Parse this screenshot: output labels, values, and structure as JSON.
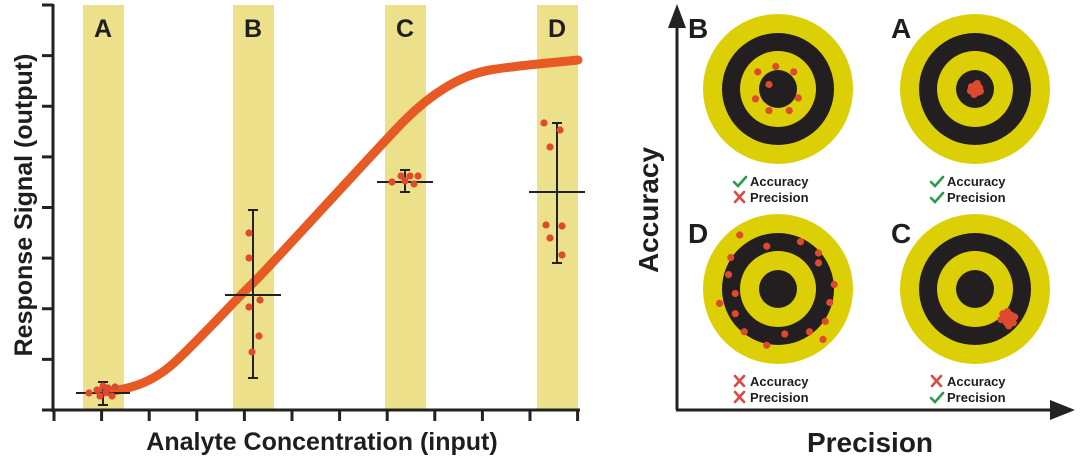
{
  "colors": {
    "band": "#ece08a",
    "curve": "#e85a24",
    "point": "#dd4a2e",
    "axis": "#222222",
    "target_yellow": "#dccf06",
    "target_black": "#231f20",
    "check": "#2e9a4e",
    "cross": "#dd4a44"
  },
  "chart_data": {
    "type": "scatter",
    "title": "",
    "xlabel": "Analyte Concentration (input)",
    "ylabel": "Response Signal (output)",
    "x_ticks": 11,
    "y_ticks": 9,
    "ylim": [
      0,
      8
    ],
    "xlim": [
      0,
      10
    ],
    "grid": false,
    "curve": {
      "name": "calibration curve",
      "x": [
        0,
        1.5,
        2.5,
        4,
        5.5,
        7,
        8.5,
        10
      ],
      "y": [
        0.2,
        0.4,
        1,
        3,
        5.2,
        6.7,
        6.85,
        6.95
      ]
    },
    "groups": [
      {
        "label": "A",
        "x": 0.45,
        "mean": 0.35,
        "err_low": 0.05,
        "err_high": 0.6,
        "points": [
          [
            0.1,
            0.35
          ],
          [
            0.35,
            0.4
          ],
          [
            0.45,
            0.5
          ],
          [
            0.55,
            0.25
          ],
          [
            0.6,
            0.45
          ],
          [
            0.75,
            0.35
          ],
          [
            0.85,
            0.4
          ],
          [
            0.5,
            0.3
          ]
        ]
      },
      {
        "label": "B",
        "x": 3.4,
        "mean": 2.3,
        "err_low": 0.6,
        "err_high": 3.95,
        "points": [
          [
            3.3,
            3.55
          ],
          [
            3.3,
            3.05
          ],
          [
            3.45,
            2.65
          ],
          [
            3.5,
            2.1
          ],
          [
            3.3,
            2.0
          ],
          [
            3.45,
            1.45
          ],
          [
            3.3,
            1.15
          ]
        ]
      },
      {
        "label": "C",
        "x": 6.5,
        "mean": 4.5,
        "err_low": 4.3,
        "err_high": 4.75,
        "points": [
          [
            6.2,
            4.55
          ],
          [
            6.4,
            4.65
          ],
          [
            6.55,
            4.65
          ],
          [
            6.7,
            4.65
          ],
          [
            6.5,
            4.5
          ],
          [
            6.65,
            4.45
          ]
        ]
      },
      {
        "label": "D",
        "x": 9.4,
        "mean": 4.3,
        "err_low": 2.95,
        "err_high": 5.65,
        "points": [
          [
            9.2,
            5.7
          ],
          [
            9.45,
            5.6
          ],
          [
            9.25,
            5.1
          ],
          [
            9.2,
            3.6
          ],
          [
            9.45,
            3.6
          ],
          [
            9.25,
            3.35
          ],
          [
            9.45,
            3.05
          ]
        ]
      }
    ]
  },
  "targets": {
    "x_axis_label": "Precision",
    "y_axis_label": "Accuracy",
    "items": [
      {
        "label": "B",
        "accuracy": true,
        "precision": false,
        "accuracy_text": "Accuracy",
        "precision_text": "Precision",
        "hits": [
          [
            -0.45,
            -0.38
          ],
          [
            -0.05,
            -0.5
          ],
          [
            0.35,
            -0.38
          ],
          [
            -0.2,
            -0.1
          ],
          [
            -0.5,
            0.22
          ],
          [
            0.45,
            0.2
          ],
          [
            -0.2,
            0.48
          ],
          [
            0.25,
            0.48
          ]
        ]
      },
      {
        "label": "A",
        "accuracy": true,
        "precision": true,
        "accuracy_text": "Accuracy",
        "precision_text": "Precision",
        "hits": [
          [
            -0.08,
            -0.05
          ],
          [
            0.02,
            -0.1
          ],
          [
            0.1,
            -0.03
          ],
          [
            -0.04,
            0.06
          ],
          [
            0.07,
            0.07
          ],
          [
            -0.1,
            0.04
          ],
          [
            0.0,
            0.02
          ],
          [
            0.12,
            0.05
          ],
          [
            -0.02,
            0.12
          ],
          [
            0.05,
            -0.12
          ]
        ]
      },
      {
        "label": "D",
        "accuracy": false,
        "precision": false,
        "accuracy_text": "Accuracy",
        "precision_text": "Precision",
        "hits": [
          [
            -0.85,
            -1.2
          ],
          [
            -0.25,
            -0.95
          ],
          [
            0.5,
            -1.05
          ],
          [
            0.9,
            -0.8
          ],
          [
            -1.05,
            -0.7
          ],
          [
            0.9,
            -0.58
          ],
          [
            -1.1,
            -0.32
          ],
          [
            1.25,
            -0.1
          ],
          [
            -0.95,
            0.1
          ],
          [
            -1.3,
            0.32
          ],
          [
            1.15,
            0.3
          ],
          [
            -0.95,
            0.55
          ],
          [
            1.05,
            0.72
          ],
          [
            -0.75,
            0.95
          ],
          [
            0.15,
            1.0
          ],
          [
            0.7,
            0.95
          ],
          [
            -0.25,
            1.25
          ],
          [
            1.0,
            1.12
          ]
        ]
      },
      {
        "label": "C",
        "accuracy": false,
        "precision": true,
        "accuracy_text": "Accuracy",
        "precision_text": "Precision",
        "hits": [
          [
            0.62,
            0.55
          ],
          [
            0.72,
            0.5
          ],
          [
            0.8,
            0.58
          ],
          [
            0.68,
            0.65
          ],
          [
            0.78,
            0.68
          ],
          [
            0.88,
            0.62
          ],
          [
            0.7,
            0.75
          ],
          [
            0.85,
            0.75
          ],
          [
            0.58,
            0.68
          ],
          [
            0.75,
            0.82
          ]
        ]
      }
    ]
  }
}
